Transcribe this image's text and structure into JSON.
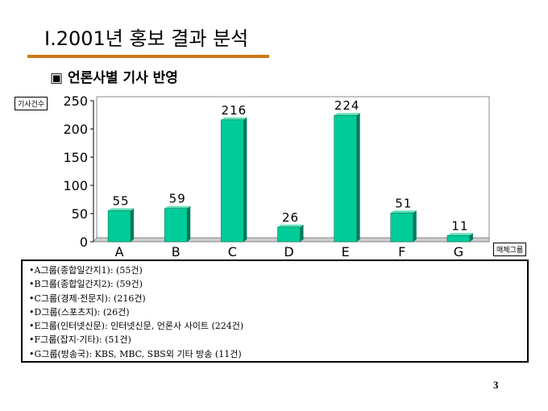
{
  "slide": {
    "title": "Ⅰ.2001년 홍보 결과 분석",
    "subtitle": "▣ 언론사별 기사 반영",
    "page_number": "3"
  },
  "chart_data": {
    "type": "bar",
    "title": "",
    "ylabel": "기사건수",
    "xlabel": "매체그룹",
    "categories": [
      "A",
      "B",
      "C",
      "D",
      "E",
      "F",
      "G"
    ],
    "values": [
      55,
      59,
      216,
      26,
      224,
      51,
      11
    ],
    "ylim": [
      0,
      250
    ],
    "yticks": [
      0,
      50,
      100,
      150,
      200,
      250
    ],
    "grid": false,
    "bar_color": "#00cc99",
    "bar_side_color": "#007a5c"
  },
  "notes": [
    "•A그룹(종합일간지1): (55건)",
    "•B그룹(종합일간지2): (59건)",
    "•C그룹(경제·전문지): (216건)",
    "•D그룹(스포츠지): (26건)",
    "•E그룹(인터넷신문): 인터넷신문, 언론사 사이트  (224건)",
    "•F그룹(잡지·기타): (51건)",
    "•G그룹(방송국): KBS, MBC, SBS외 기타 방송  (11건)"
  ]
}
